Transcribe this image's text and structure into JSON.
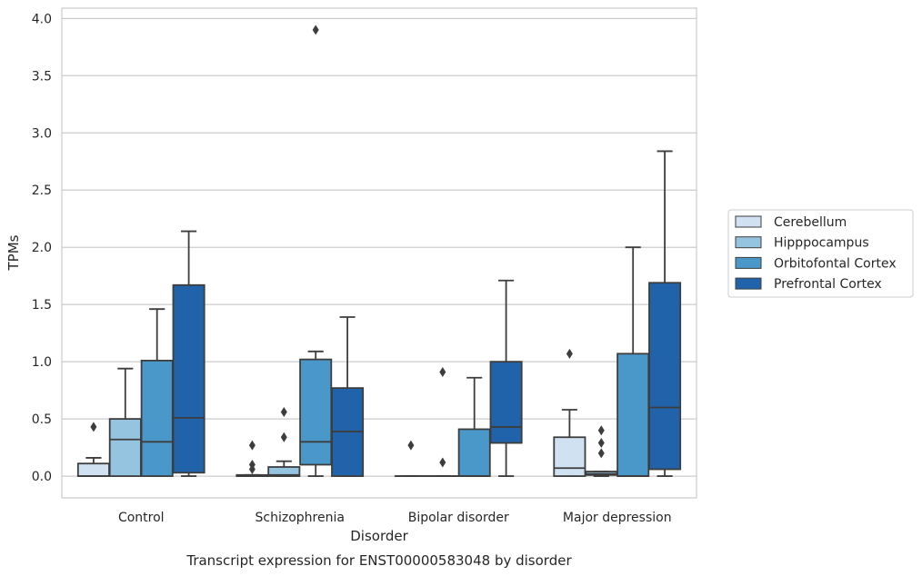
{
  "caption": "Transcript expression for ENST00000583048 by disorder",
  "chart_data": {
    "type": "box",
    "xlabel": "Disorder",
    "ylabel": "TPMs",
    "ylim": [
      -0.19,
      4.09
    ],
    "yticks": [
      "0.0",
      "0.5",
      "1.0",
      "1.5",
      "2.0",
      "2.5",
      "3.0",
      "3.5",
      "4.0"
    ],
    "ytick_values": [
      0,
      0.5,
      1.0,
      1.5,
      2.0,
      2.5,
      3.0,
      3.5,
      4.0
    ],
    "grid": "horizontal",
    "legend_position": "right",
    "categories": [
      "Control",
      "Schizophrenia",
      "Bipolar disorder",
      "Major depression"
    ],
    "series": [
      {
        "name": "Cerebellum",
        "color": "#d0e1f2",
        "boxes": [
          {
            "whislo": 0.0,
            "q1": 0.0,
            "med": 0.0,
            "q3": 0.11,
            "whishi": 0.16,
            "fliers": [
              0.43
            ]
          },
          {
            "whislo": 0.0,
            "q1": 0.0,
            "med": 0.0,
            "q3": 0.01,
            "whishi": 0.01,
            "fliers": [
              0.06,
              0.1,
              0.27
            ]
          },
          {
            "whislo": 0.0,
            "q1": 0.0,
            "med": 0.0,
            "q3": 0.0,
            "whishi": 0.0,
            "fliers": [
              0.27
            ]
          },
          {
            "whislo": 0.0,
            "q1": 0.0,
            "med": 0.07,
            "q3": 0.34,
            "whishi": 0.58,
            "fliers": [
              1.07
            ]
          }
        ]
      },
      {
        "name": "Hipppocampus",
        "color": "#94c4df",
        "boxes": [
          {
            "whislo": 0.0,
            "q1": 0.0,
            "med": 0.32,
            "q3": 0.5,
            "whishi": 0.94,
            "fliers": []
          },
          {
            "whislo": 0.0,
            "q1": 0.0,
            "med": 0.01,
            "q3": 0.08,
            "whishi": 0.13,
            "fliers": [
              0.34,
              0.56
            ]
          },
          {
            "whislo": 0.0,
            "q1": 0.0,
            "med": 0.0,
            "q3": 0.0,
            "whishi": 0.0,
            "fliers": [
              0.12,
              0.91
            ]
          },
          {
            "whislo": 0.0,
            "q1": 0.01,
            "med": 0.02,
            "q3": 0.04,
            "whishi": 0.04,
            "fliers": [
              0.2,
              0.29,
              0.4
            ]
          }
        ]
      },
      {
        "name": "Orbitofontal Cortex",
        "color": "#4a98c9",
        "boxes": [
          {
            "whislo": 0.0,
            "q1": 0.0,
            "med": 0.3,
            "q3": 1.01,
            "whishi": 1.46,
            "fliers": []
          },
          {
            "whislo": 0.0,
            "q1": 0.1,
            "med": 0.3,
            "q3": 1.02,
            "whishi": 1.09,
            "fliers": [
              3.9
            ]
          },
          {
            "whislo": 0.0,
            "q1": 0.0,
            "med": 0.0,
            "q3": 0.41,
            "whishi": 0.86,
            "fliers": []
          },
          {
            "whislo": 0.0,
            "q1": 0.0,
            "med": 0.0,
            "q3": 1.07,
            "whishi": 2.0,
            "fliers": []
          }
        ]
      },
      {
        "name": "Prefrontal Cortex",
        "color": "#2163aa",
        "boxes": [
          {
            "whislo": 0.0,
            "q1": 0.03,
            "med": 0.51,
            "q3": 1.67,
            "whishi": 2.14,
            "fliers": []
          },
          {
            "whislo": 0.0,
            "q1": 0.0,
            "med": 0.39,
            "q3": 0.77,
            "whishi": 1.39,
            "fliers": []
          },
          {
            "whislo": 0.0,
            "q1": 0.29,
            "med": 0.43,
            "q3": 1.0,
            "whishi": 1.71,
            "fliers": []
          },
          {
            "whislo": 0.0,
            "q1": 0.06,
            "med": 0.6,
            "q3": 1.69,
            "whishi": 2.84,
            "fliers": []
          }
        ]
      }
    ]
  }
}
